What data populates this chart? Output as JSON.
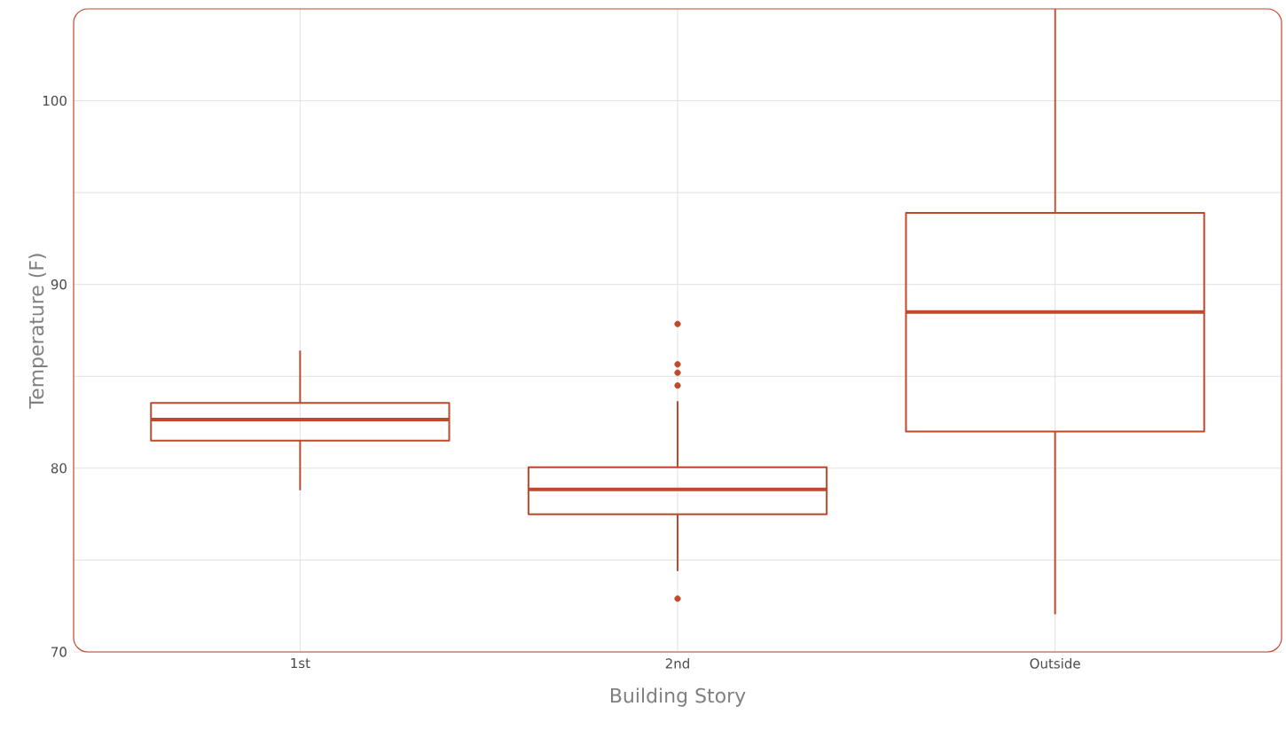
{
  "chart_data": {
    "type": "box",
    "xlabel": "Building Story",
    "ylabel": "Temperature (F)",
    "categories": [
      "1st",
      "2nd",
      "Outside"
    ],
    "color": "#c0492b",
    "boxes": [
      {
        "low": 78.8,
        "q1": 81.5,
        "median": 82.65,
        "q3": 83.55,
        "high": 86.4
      },
      {
        "low": 74.4,
        "q1": 77.5,
        "median": 78.85,
        "q3": 80.05,
        "high": 83.65,
        "outliers": [
          87.85,
          85.65,
          85.2,
          84.5,
          72.9
        ]
      },
      {
        "low": 72.05,
        "q1": 82.0,
        "median": 88.5,
        "q3": 93.9,
        "high": 105
      }
    ],
    "ylim": [
      70,
      105
    ],
    "yticks": [
      70,
      {
        "value": 75,
        "label": null
      },
      80,
      {
        "value": 85,
        "label": null
      },
      90,
      {
        "value": 95,
        "label": null
      },
      100
    ],
    "grid": true
  }
}
